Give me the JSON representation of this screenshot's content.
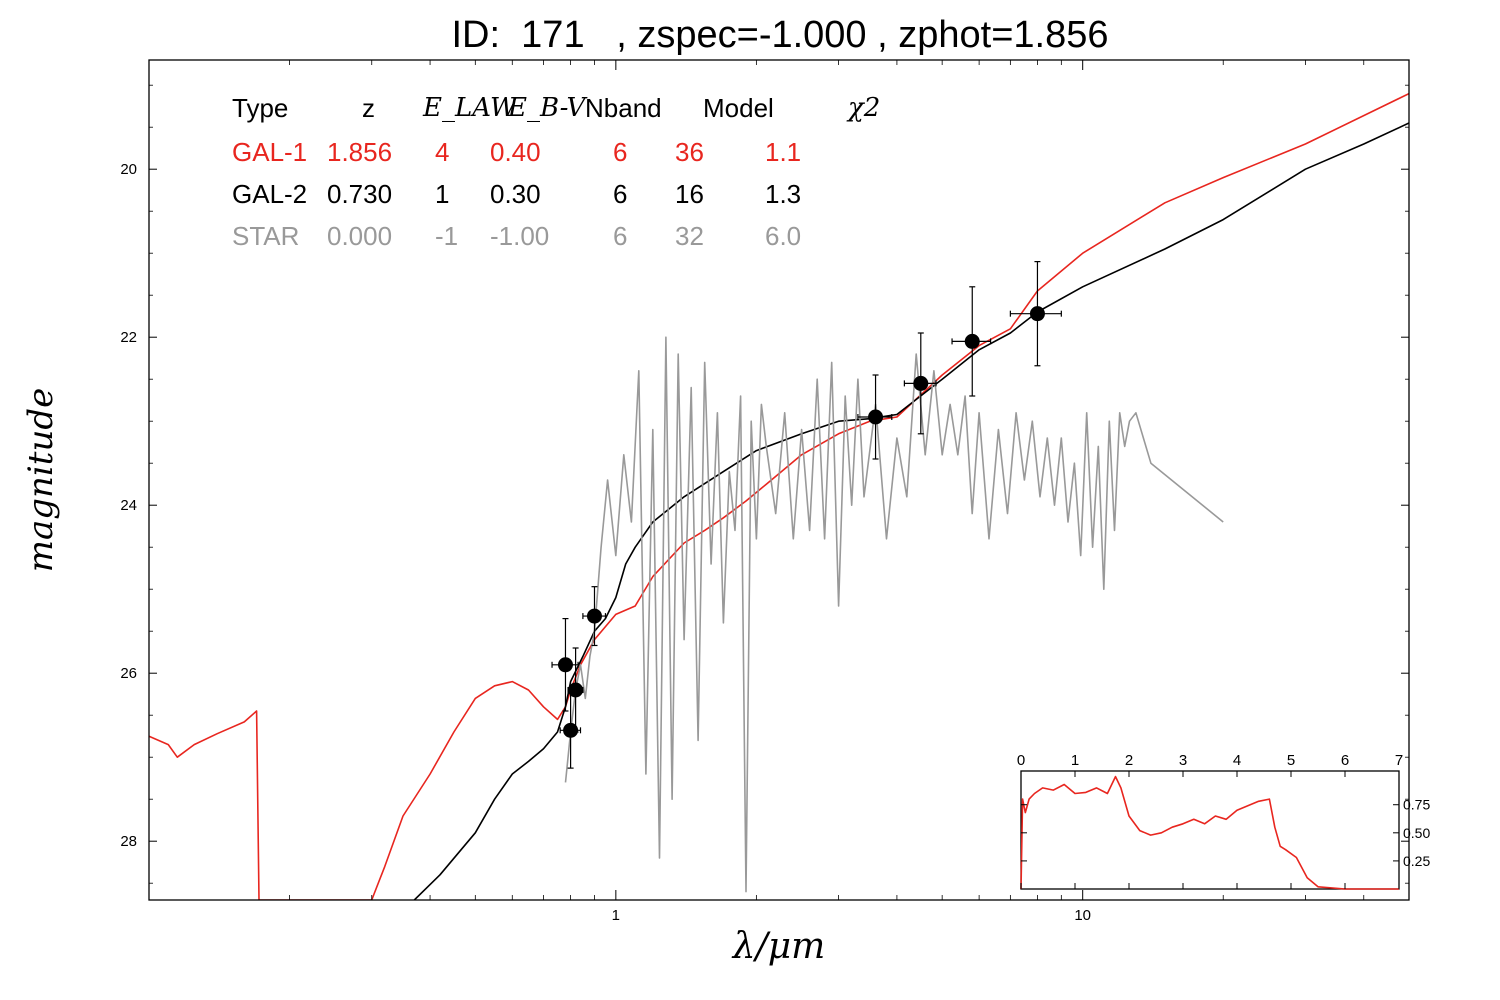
{
  "title": "ID:  171   , zspec=-1.000 , zphot=1.856",
  "legend": {
    "headers": [
      "Type",
      "z",
      "E_LAW",
      "E_B-V",
      "Nband",
      "Model",
      "χ2"
    ],
    "rows": [
      {
        "color": "#e8261f",
        "cells": [
          "GAL-1",
          "1.856",
          "4",
          "0.40",
          "6",
          "36",
          "1.1"
        ]
      },
      {
        "color": "#000000",
        "cells": [
          "GAL-2",
          "0.730",
          "1",
          "0.30",
          "6",
          "16",
          "1.3"
        ]
      },
      {
        "color": "#999999",
        "cells": [
          "STAR",
          "0.000",
          "-1",
          "-1.00",
          "6",
          "32",
          "6.0"
        ]
      }
    ]
  },
  "chart_data": [
    {
      "type": "line",
      "xlabel": "λ/μm",
      "ylabel": "magnitude",
      "xscale": "log",
      "xlim": [
        0.1,
        50
      ],
      "ylim": [
        28.7,
        18.7
      ],
      "xticks": [
        1,
        10
      ],
      "yticks": [
        20,
        22,
        24,
        26,
        28
      ],
      "series": [
        {
          "name": "GAL-1",
          "color": "#e8261f",
          "points": [
            [
              0.1,
              26.75
            ],
            [
              0.11,
              26.85
            ],
            [
              0.115,
              27.0
            ],
            [
              0.125,
              26.85
            ],
            [
              0.14,
              26.72
            ],
            [
              0.16,
              26.58
            ],
            [
              0.17,
              26.45
            ],
            [
              0.172,
              28.7
            ],
            [
              0.3,
              28.7
            ],
            [
              0.32,
              28.3
            ],
            [
              0.35,
              27.7
            ],
            [
              0.4,
              27.2
            ],
            [
              0.45,
              26.7
            ],
            [
              0.5,
              26.3
            ],
            [
              0.55,
              26.15
            ],
            [
              0.6,
              26.1
            ],
            [
              0.65,
              26.2
            ],
            [
              0.7,
              26.4
            ],
            [
              0.75,
              26.55
            ],
            [
              0.78,
              26.4
            ],
            [
              0.8,
              26.2
            ],
            [
              0.84,
              25.9
            ],
            [
              0.9,
              25.6
            ],
            [
              1.0,
              25.3
            ],
            [
              1.1,
              25.2
            ],
            [
              1.2,
              24.85
            ],
            [
              1.4,
              24.45
            ],
            [
              1.55,
              24.3
            ],
            [
              1.7,
              24.15
            ],
            [
              1.9,
              23.95
            ],
            [
              2.1,
              23.75
            ],
            [
              2.5,
              23.4
            ],
            [
              3.0,
              23.15
            ],
            [
              3.5,
              23.0
            ],
            [
              4.0,
              22.95
            ],
            [
              5.0,
              22.45
            ],
            [
              6.0,
              22.1
            ],
            [
              7.0,
              21.9
            ],
            [
              8.0,
              21.45
            ],
            [
              10.0,
              21.0
            ],
            [
              15.0,
              20.4
            ],
            [
              20.0,
              20.1
            ],
            [
              30.0,
              19.7
            ],
            [
              50.0,
              19.1
            ]
          ]
        },
        {
          "name": "GAL-2",
          "color": "#000000",
          "points": [
            [
              0.37,
              28.7
            ],
            [
              0.42,
              28.4
            ],
            [
              0.5,
              27.9
            ],
            [
              0.55,
              27.5
            ],
            [
              0.6,
              27.2
            ],
            [
              0.65,
              27.05
            ],
            [
              0.7,
              26.9
            ],
            [
              0.75,
              26.7
            ],
            [
              0.78,
              26.4
            ],
            [
              0.8,
              26.1
            ],
            [
              0.85,
              25.8
            ],
            [
              0.9,
              25.5
            ],
            [
              0.95,
              25.35
            ],
            [
              1.0,
              25.1
            ],
            [
              1.05,
              24.7
            ],
            [
              1.1,
              24.5
            ],
            [
              1.2,
              24.2
            ],
            [
              1.4,
              23.9
            ],
            [
              1.7,
              23.6
            ],
            [
              2.0,
              23.35
            ],
            [
              2.5,
              23.15
            ],
            [
              3.0,
              23.0
            ],
            [
              3.5,
              22.97
            ],
            [
              4.0,
              22.92
            ],
            [
              5.0,
              22.5
            ],
            [
              6.0,
              22.15
            ],
            [
              7.0,
              21.95
            ],
            [
              8.0,
              21.7
            ],
            [
              10.0,
              21.4
            ],
            [
              15.0,
              20.95
            ],
            [
              20.0,
              20.6
            ],
            [
              30.0,
              20.0
            ],
            [
              40.0,
              19.7
            ],
            [
              50.0,
              19.45
            ]
          ]
        },
        {
          "name": "STAR",
          "color": "#999999",
          "points": [
            [
              0.78,
              27.3
            ],
            [
              0.8,
              26.7
            ],
            [
              0.82,
              26.2
            ],
            [
              0.84,
              25.9
            ],
            [
              0.86,
              26.3
            ],
            [
              0.88,
              25.8
            ],
            [
              0.9,
              25.5
            ],
            [
              0.93,
              24.5
            ],
            [
              0.96,
              23.7
            ],
            [
              1.0,
              24.6
            ],
            [
              1.04,
              23.4
            ],
            [
              1.08,
              24.2
            ],
            [
              1.12,
              22.4
            ],
            [
              1.16,
              27.2
            ],
            [
              1.2,
              23.1
            ],
            [
              1.24,
              28.2
            ],
            [
              1.28,
              22.0
            ],
            [
              1.32,
              27.5
            ],
            [
              1.36,
              22.2
            ],
            [
              1.4,
              25.6
            ],
            [
              1.45,
              22.6
            ],
            [
              1.5,
              26.8
            ],
            [
              1.55,
              22.3
            ],
            [
              1.6,
              24.7
            ],
            [
              1.65,
              22.9
            ],
            [
              1.7,
              25.4
            ],
            [
              1.75,
              23.6
            ],
            [
              1.8,
              24.3
            ],
            [
              1.85,
              22.7
            ],
            [
              1.9,
              28.6
            ],
            [
              1.95,
              23.0
            ],
            [
              2.0,
              24.4
            ],
            [
              2.05,
              22.8
            ],
            [
              2.1,
              23.3
            ],
            [
              2.2,
              24.1
            ],
            [
              2.3,
              22.9
            ],
            [
              2.4,
              24.4
            ],
            [
              2.5,
              23.1
            ],
            [
              2.6,
              24.3
            ],
            [
              2.7,
              22.5
            ],
            [
              2.8,
              24.4
            ],
            [
              2.9,
              22.3
            ],
            [
              3.0,
              25.2
            ],
            [
              3.1,
              22.7
            ],
            [
              3.2,
              24.0
            ],
            [
              3.3,
              22.5
            ],
            [
              3.4,
              23.9
            ],
            [
              3.6,
              22.8
            ],
            [
              3.8,
              24.4
            ],
            [
              4.0,
              23.2
            ],
            [
              4.2,
              23.9
            ],
            [
              4.4,
              22.2
            ],
            [
              4.6,
              23.4
            ],
            [
              4.8,
              22.4
            ],
            [
              5.0,
              23.4
            ],
            [
              5.2,
              22.8
            ],
            [
              5.4,
              23.4
            ],
            [
              5.6,
              22.7
            ],
            [
              5.8,
              24.1
            ],
            [
              6.0,
              22.9
            ],
            [
              6.3,
              24.4
            ],
            [
              6.6,
              23.1
            ],
            [
              6.9,
              24.1
            ],
            [
              7.2,
              22.9
            ],
            [
              7.5,
              23.7
            ],
            [
              7.8,
              23.0
            ],
            [
              8.1,
              23.9
            ],
            [
              8.4,
              23.2
            ],
            [
              8.7,
              24.0
            ],
            [
              9.0,
              23.2
            ],
            [
              9.3,
              24.2
            ],
            [
              9.6,
              23.5
            ],
            [
              9.9,
              24.6
            ],
            [
              10.2,
              22.9
            ],
            [
              10.5,
              24.5
            ],
            [
              10.8,
              23.3
            ],
            [
              11.1,
              25.0
            ],
            [
              11.4,
              23.0
            ],
            [
              11.7,
              24.3
            ],
            [
              12.0,
              22.9
            ],
            [
              12.3,
              23.3
            ],
            [
              12.6,
              23.0
            ],
            [
              13.0,
              22.9
            ],
            [
              14.0,
              23.5
            ],
            [
              20.0,
              24.2
            ]
          ]
        }
      ],
      "photometry": [
        {
          "x": 0.78,
          "y": 25.9,
          "xerr": 0.05,
          "yerr": 0.55
        },
        {
          "x": 0.8,
          "y": 26.68,
          "xerr": 0.04,
          "yerr": 0.45
        },
        {
          "x": 0.82,
          "y": 26.2,
          "xerr": 0.03,
          "yerr": 0.5
        },
        {
          "x": 0.9,
          "y": 25.32,
          "xerr": 0.05,
          "yerr": 0.35
        },
        {
          "x": 3.6,
          "y": 22.95,
          "xerr": 0.3,
          "yerr": 0.5
        },
        {
          "x": 4.5,
          "y": 22.55,
          "xerr": 0.35,
          "yerr": 0.6
        },
        {
          "x": 5.8,
          "y": 22.05,
          "xerr": 0.55,
          "yerr": 0.65
        },
        {
          "x": 8.0,
          "y": 21.72,
          "xerr": 1.0,
          "yerr": 0.62
        }
      ]
    },
    {
      "type": "line",
      "xlim": [
        0,
        7
      ],
      "ylim": [
        0,
        1.05
      ],
      "xticks": [
        0,
        1,
        2,
        3,
        4,
        5,
        6,
        7
      ],
      "yticks": [
        0.25,
        0.5,
        0.75
      ],
      "series": [
        {
          "color": "#e8261f",
          "points": [
            [
              0.0,
              0.0
            ],
            [
              0.03,
              0.8
            ],
            [
              0.08,
              0.68
            ],
            [
              0.15,
              0.8
            ],
            [
              0.25,
              0.85
            ],
            [
              0.4,
              0.9
            ],
            [
              0.6,
              0.88
            ],
            [
              0.8,
              0.93
            ],
            [
              1.0,
              0.85
            ],
            [
              1.2,
              0.86
            ],
            [
              1.4,
              0.9
            ],
            [
              1.6,
              0.85
            ],
            [
              1.75,
              1.0
            ],
            [
              1.85,
              0.9
            ],
            [
              2.0,
              0.65
            ],
            [
              2.2,
              0.52
            ],
            [
              2.4,
              0.48
            ],
            [
              2.6,
              0.5
            ],
            [
              2.8,
              0.55
            ],
            [
              3.0,
              0.58
            ],
            [
              3.2,
              0.62
            ],
            [
              3.4,
              0.58
            ],
            [
              3.6,
              0.65
            ],
            [
              3.8,
              0.62
            ],
            [
              4.0,
              0.7
            ],
            [
              4.2,
              0.74
            ],
            [
              4.4,
              0.78
            ],
            [
              4.6,
              0.8
            ],
            [
              4.7,
              0.55
            ],
            [
              4.8,
              0.38
            ],
            [
              4.9,
              0.35
            ],
            [
              5.1,
              0.28
            ],
            [
              5.3,
              0.1
            ],
            [
              5.5,
              0.02
            ],
            [
              6.0,
              0.0
            ],
            [
              7.0,
              0.0
            ]
          ]
        }
      ]
    }
  ]
}
